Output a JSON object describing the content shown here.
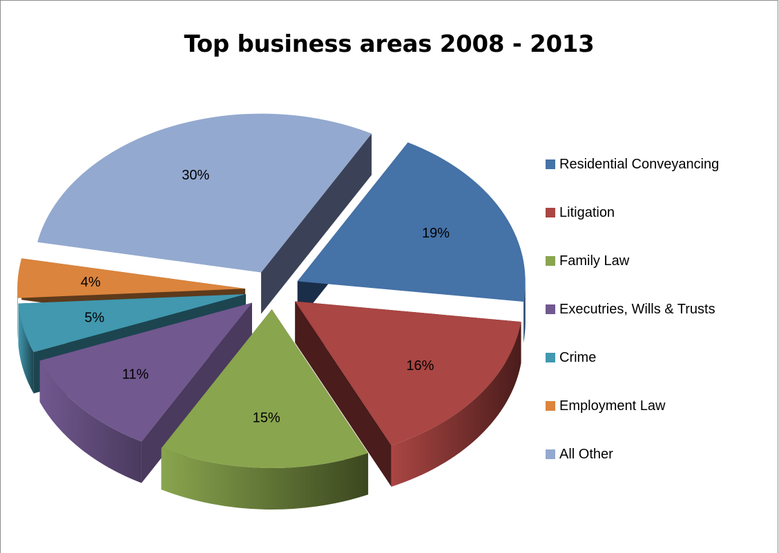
{
  "chart_data": {
    "type": "pie",
    "title": "Top business areas 2008 - 2013",
    "style": "3D exploded",
    "legend_position": "right",
    "slices": [
      {
        "label": "Residential Conveyancing",
        "value": 19,
        "display": "19%",
        "color": "#4572A7",
        "color_dark": "#1B2E49"
      },
      {
        "label": "Litigation",
        "value": 16,
        "display": "16%",
        "color": "#AA4643",
        "color_dark": "#4A1C1B"
      },
      {
        "label": "Family Law",
        "value": 15,
        "display": "15%",
        "color": "#89A54E",
        "color_dark": "#3B471F"
      },
      {
        "label": "Executries, Wills & Trusts",
        "value": 11,
        "display": "11%",
        "color": "#71588F",
        "color_dark": "#4A3A5E"
      },
      {
        "label": "Crime",
        "value": 5,
        "display": "5%",
        "color": "#4198AF",
        "color_dark": "#1C4550"
      },
      {
        "label": "Employment Law",
        "value": 4,
        "display": "4%",
        "color": "#DB843D",
        "color_dark": "#5E3A1B"
      },
      {
        "label": "All Other",
        "value": 30,
        "display": "30%",
        "color": "#93A9CF",
        "color_dark": "#3B4257"
      }
    ]
  }
}
